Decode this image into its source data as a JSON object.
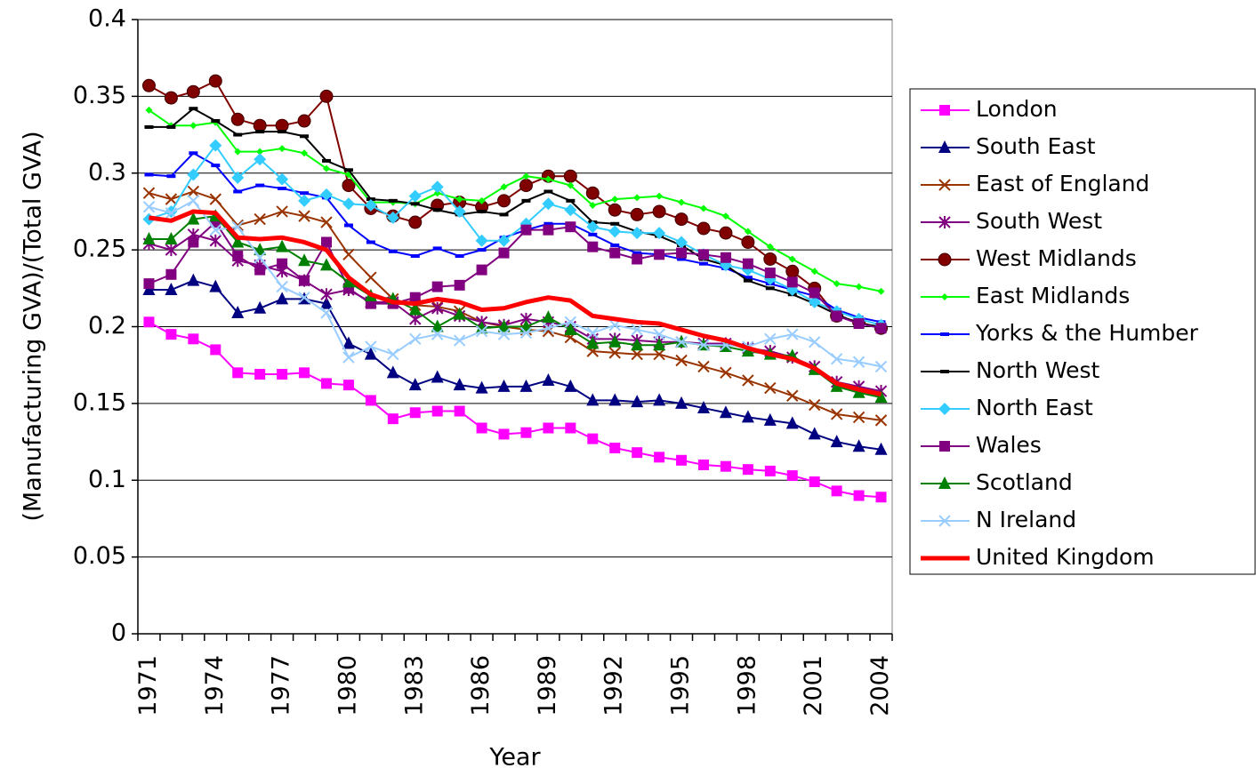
{
  "chart_data": {
    "type": "line",
    "x_label": "Year",
    "y_label": "(Manufacturing GVA)/(Total GVA)",
    "categories": [
      "1971",
      null,
      null,
      "1974",
      null,
      null,
      "1977",
      null,
      null,
      "1980",
      null,
      null,
      "1983",
      null,
      null,
      "1986",
      null,
      null,
      "1989",
      null,
      null,
      "1992",
      null,
      null,
      "1995",
      null,
      null,
      "1998",
      null,
      null,
      "2001",
      null,
      null,
      "2004"
    ],
    "ylim": [
      0,
      0.4
    ],
    "yticks": [
      0,
      0.05,
      0.1,
      0.15,
      0.2,
      0.25,
      0.3,
      0.35,
      0.4
    ],
    "grid": true,
    "legend": "right",
    "series": [
      {
        "name": "London",
        "color": "#ff00ff",
        "marker": "square",
        "values": [
          0.203,
          0.195,
          0.192,
          0.185,
          0.17,
          0.169,
          0.169,
          0.17,
          0.163,
          0.162,
          0.152,
          0.14,
          0.144,
          0.145,
          0.145,
          0.134,
          0.13,
          0.131,
          0.134,
          0.134,
          0.127,
          0.121,
          0.118,
          0.115,
          0.113,
          0.11,
          0.109,
          0.107,
          0.106,
          0.103,
          0.099,
          0.093,
          0.09,
          0.089
        ]
      },
      {
        "name": "South East",
        "color": "#000080",
        "marker": "triangle",
        "values": [
          0.224,
          0.224,
          0.23,
          0.226,
          0.209,
          0.212,
          0.218,
          0.218,
          0.215,
          0.189,
          0.182,
          0.17,
          0.162,
          0.167,
          0.162,
          0.16,
          0.161,
          0.161,
          0.165,
          0.161,
          0.152,
          0.152,
          0.151,
          0.152,
          0.15,
          0.147,
          0.144,
          0.141,
          0.139,
          0.137,
          0.13,
          0.125,
          0.122,
          0.12
        ]
      },
      {
        "name": "East of England",
        "color": "#993300",
        "marker": "x",
        "values": [
          0.287,
          0.283,
          0.288,
          0.283,
          0.266,
          0.27,
          0.275,
          0.272,
          0.268,
          0.247,
          0.232,
          0.218,
          0.214,
          0.213,
          0.21,
          0.203,
          0.2,
          0.198,
          0.197,
          0.193,
          0.184,
          0.183,
          0.182,
          0.182,
          0.178,
          0.174,
          0.17,
          0.165,
          0.16,
          0.155,
          0.149,
          0.143,
          0.141,
          0.139
        ]
      },
      {
        "name": "South West",
        "color": "#800080",
        "marker": "star",
        "values": [
          0.254,
          0.25,
          0.26,
          0.256,
          0.243,
          0.24,
          0.236,
          0.23,
          0.221,
          0.224,
          0.216,
          0.216,
          0.205,
          0.212,
          0.207,
          0.203,
          0.201,
          0.205,
          0.203,
          0.2,
          0.192,
          0.192,
          0.191,
          0.19,
          0.19,
          0.189,
          0.189,
          0.186,
          0.184,
          0.18,
          0.174,
          0.164,
          0.161,
          0.158
        ]
      },
      {
        "name": "West Midlands",
        "color": "#800000",
        "marker": "circle",
        "values": [
          0.357,
          0.349,
          0.353,
          0.36,
          0.335,
          0.331,
          0.331,
          0.334,
          0.35,
          0.292,
          0.277,
          0.272,
          0.268,
          0.279,
          0.281,
          0.278,
          0.282,
          0.292,
          0.298,
          0.298,
          0.287,
          0.276,
          0.273,
          0.275,
          0.27,
          0.264,
          0.261,
          0.255,
          0.244,
          0.236,
          0.225,
          0.207,
          0.203,
          0.199
        ]
      },
      {
        "name": "East Midlands",
        "color": "#00ff00",
        "marker": "smalldiamond",
        "values": [
          0.341,
          0.331,
          0.331,
          0.333,
          0.314,
          0.314,
          0.316,
          0.313,
          0.303,
          0.299,
          0.281,
          0.281,
          0.28,
          0.287,
          0.283,
          0.282,
          0.291,
          0.298,
          0.296,
          0.292,
          0.279,
          0.283,
          0.284,
          0.285,
          0.281,
          0.277,
          0.272,
          0.262,
          0.252,
          0.244,
          0.236,
          0.228,
          0.226,
          0.223
        ]
      },
      {
        "name": "Yorks & the Humber",
        "color": "#0000ff",
        "marker": "dash",
        "values": [
          0.299,
          0.298,
          0.313,
          0.305,
          0.288,
          0.292,
          0.29,
          0.287,
          0.284,
          0.266,
          0.255,
          0.249,
          0.246,
          0.251,
          0.246,
          0.25,
          0.258,
          0.263,
          0.267,
          0.267,
          0.26,
          0.253,
          0.248,
          0.247,
          0.244,
          0.241,
          0.238,
          0.232,
          0.228,
          0.224,
          0.22,
          0.211,
          0.206,
          0.203
        ]
      },
      {
        "name": "North West",
        "color": "#000000",
        "marker": "dash",
        "values": [
          0.33,
          0.33,
          0.342,
          0.334,
          0.325,
          0.327,
          0.327,
          0.324,
          0.308,
          0.302,
          0.283,
          0.282,
          0.28,
          0.276,
          0.273,
          0.275,
          0.273,
          0.282,
          0.288,
          0.282,
          0.268,
          0.267,
          0.262,
          0.259,
          0.253,
          0.244,
          0.24,
          0.23,
          0.225,
          0.221,
          0.215,
          0.208,
          0.202,
          0.2
        ]
      },
      {
        "name": "North East",
        "color": "#33ccff",
        "marker": "diamond",
        "values": [
          0.27,
          0.275,
          0.299,
          0.318,
          0.297,
          0.309,
          0.296,
          0.282,
          0.286,
          0.28,
          0.279,
          0.271,
          0.285,
          0.291,
          0.275,
          0.256,
          0.256,
          0.267,
          0.28,
          0.276,
          0.265,
          0.262,
          0.261,
          0.261,
          0.255,
          0.247,
          0.24,
          0.237,
          0.231,
          0.224,
          0.216,
          0.21,
          0.205,
          0.201
        ]
      },
      {
        "name": "Wales",
        "color": "#800080",
        "marker": "square",
        "values": [
          0.228,
          0.234,
          0.255,
          0.268,
          0.246,
          0.237,
          0.241,
          0.23,
          0.255,
          0.225,
          0.215,
          0.215,
          0.219,
          0.226,
          0.227,
          0.237,
          0.248,
          0.263,
          0.263,
          0.265,
          0.252,
          0.248,
          0.244,
          0.247,
          0.248,
          0.247,
          0.245,
          0.241,
          0.235,
          0.229,
          0.222,
          0.207,
          0.202,
          0.199
        ]
      },
      {
        "name": "Scotland",
        "color": "#008000",
        "marker": "triangle",
        "values": [
          0.257,
          0.257,
          0.27,
          0.272,
          0.255,
          0.25,
          0.252,
          0.243,
          0.24,
          0.229,
          0.22,
          0.218,
          0.211,
          0.2,
          0.208,
          0.199,
          0.2,
          0.2,
          0.206,
          0.198,
          0.189,
          0.19,
          0.188,
          0.188,
          0.19,
          0.188,
          0.187,
          0.184,
          0.182,
          0.181,
          0.172,
          0.161,
          0.157,
          0.154
        ]
      },
      {
        "name": "N Ireland",
        "color": "#99ccff",
        "marker": "x",
        "values": [
          0.278,
          0.274,
          0.282,
          0.263,
          0.265,
          0.245,
          0.226,
          0.219,
          0.209,
          0.18,
          0.187,
          0.182,
          0.192,
          0.195,
          0.191,
          0.197,
          0.195,
          0.196,
          0.199,
          0.203,
          0.196,
          0.201,
          0.198,
          0.195,
          0.19,
          0.188,
          0.188,
          0.187,
          0.192,
          0.195,
          0.19,
          0.179,
          0.177,
          0.174
        ]
      },
      {
        "name": "United Kingdom",
        "color": "#ff0000",
        "marker": "none",
        "width": 5,
        "values": [
          0.271,
          0.269,
          0.275,
          0.274,
          0.258,
          0.257,
          0.258,
          0.255,
          0.25,
          0.232,
          0.221,
          0.216,
          0.215,
          0.218,
          0.216,
          0.211,
          0.212,
          0.216,
          0.219,
          0.217,
          0.207,
          0.205,
          0.203,
          0.202,
          0.198,
          0.194,
          0.191,
          0.186,
          0.182,
          0.179,
          0.173,
          0.163,
          0.159,
          0.156
        ]
      }
    ]
  }
}
